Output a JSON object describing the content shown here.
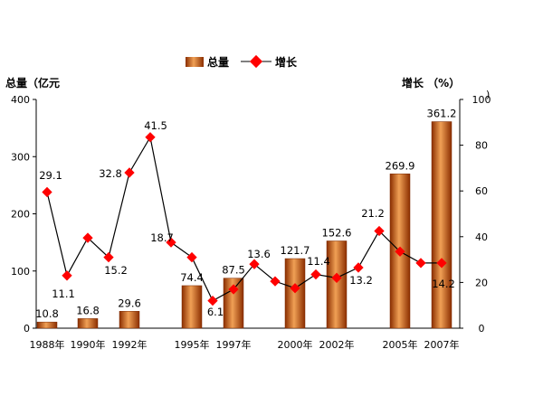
{
  "chart_data": {
    "type": "bar",
    "left_axis_title": "总量（亿元",
    "right_axis_title": "增长 （%）",
    "stray_mark": ")",
    "legend": {
      "bar": "总量",
      "line": "增长",
      "placement": "top-center"
    },
    "ylim_left": [
      0,
      400
    ],
    "left_ticks": [
      0,
      100,
      200,
      300,
      400
    ],
    "ylim_right": [
      0,
      100
    ],
    "right_ticks": [
      0,
      20,
      40,
      60,
      80,
      100
    ],
    "x_labels": [
      "1988年",
      "1990年",
      "1992年",
      "1995年",
      "1997年",
      "2000年",
      "2002年",
      "2005年",
      "2007年"
    ],
    "bars": [
      {
        "year": "1988年",
        "value": 10.8
      },
      {
        "year": "1990年",
        "value": 16.8
      },
      {
        "year": "1992年",
        "value": 29.6
      },
      {
        "year": "1995年",
        "value": 74.4
      },
      {
        "year": "1997年",
        "value": 87.5
      },
      {
        "year": "2000年",
        "value": 121.7
      },
      {
        "year": "2002年",
        "value": 152.6
      },
      {
        "year": "2005年",
        "value": 269.9
      },
      {
        "year": "2007年",
        "value": 361.2
      }
    ],
    "growth": [
      {
        "year": "1988年",
        "value": 59.5
      },
      {
        "year": "1989年",
        "value": 23.0
      },
      {
        "year": "1990年",
        "value": 39.5
      },
      {
        "year": "1991年",
        "value": 31.0
      },
      {
        "year": "1992年",
        "value": 68.0
      },
      {
        "year": "1993年",
        "value": 83.5
      },
      {
        "year": "1994年",
        "value": 37.5
      },
      {
        "year": "1995年",
        "value": 31.0
      },
      {
        "year": "1996年",
        "value": 12.0
      },
      {
        "year": "1997年",
        "value": 17.0
      },
      {
        "year": "1998年",
        "value": 28.0
      },
      {
        "year": "1999年",
        "value": 20.5
      },
      {
        "year": "2000年",
        "value": 17.5
      },
      {
        "year": "2001年",
        "value": 23.5
      },
      {
        "year": "2002年",
        "value": 22.0
      },
      {
        "year": "2003年",
        "value": 26.5
      },
      {
        "year": "2004年",
        "value": 42.5
      },
      {
        "year": "2005年",
        "value": 33.5
      },
      {
        "year": "2006年",
        "value": 28.5
      },
      {
        "year": "2007年",
        "value": 28.5
      }
    ],
    "growth_labels": [
      "29.1",
      "11.1",
      "32.8",
      "15.2",
      "41.5",
      "18.7",
      "6.1",
      "13.6",
      "11.4",
      "13.2",
      "21.2",
      "14.2"
    ],
    "colors": {
      "bar_dark": "#8b2e00",
      "bar_mid": "#d2691e",
      "bar_light": "#f4a460",
      "line": "#000000",
      "marker": "#ff0000"
    }
  }
}
